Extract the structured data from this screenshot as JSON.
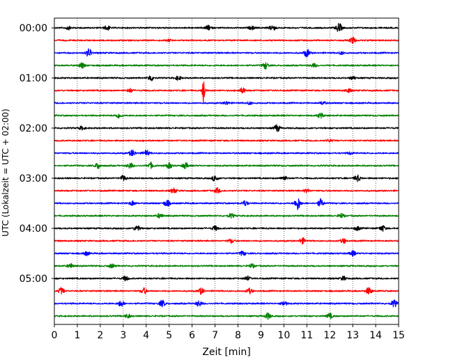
{
  "chart_data": {
    "type": "line",
    "title": "",
    "xlabel": "Zeit  [min]",
    "ylabel": "UTC (Lokalzeit = UTC + 02:00)",
    "xlim": [
      0,
      15
    ],
    "x_ticks": [
      "0",
      "1",
      "2",
      "3",
      "4",
      "5",
      "6",
      "7",
      "8",
      "9",
      "10",
      "11",
      "12",
      "13",
      "14",
      "15"
    ],
    "y_tick_labels": [
      "00:00",
      "01:00",
      "02:00",
      "03:00",
      "04:00",
      "05:00"
    ],
    "y_tick_rows": [
      0,
      4,
      8,
      12,
      16,
      20
    ],
    "grid": "vertical dotted at each minute",
    "trace_interval_minutes": 15,
    "trace_colors": [
      "#000000",
      "#ff0000",
      "#0000ff",
      "#008000"
    ],
    "series": [
      {
        "start": "00:00",
        "color": "#000000",
        "events": [
          {
            "t": 0.6,
            "a": 0.25
          },
          {
            "t": 2.3,
            "a": 0.35
          },
          {
            "t": 6.7,
            "a": 0.35
          },
          {
            "t": 8.6,
            "a": 0.25
          },
          {
            "t": 9.5,
            "a": 0.45
          },
          {
            "t": 12.4,
            "a": 0.7
          }
        ]
      },
      {
        "start": "00:15",
        "color": "#ff0000",
        "events": [
          {
            "t": 5.0,
            "a": 0.15
          },
          {
            "t": 13.0,
            "a": 0.5
          }
        ]
      },
      {
        "start": "00:30",
        "color": "#0000ff",
        "events": [
          {
            "t": 1.5,
            "a": 0.65
          },
          {
            "t": 11.0,
            "a": 0.6
          },
          {
            "t": 12.5,
            "a": 0.2
          }
        ]
      },
      {
        "start": "00:45",
        "color": "#008000",
        "events": [
          {
            "t": 1.2,
            "a": 0.45
          },
          {
            "t": 9.2,
            "a": 0.5
          },
          {
            "t": 11.3,
            "a": 0.3
          }
        ]
      },
      {
        "start": "01:00",
        "color": "#000000",
        "events": [
          {
            "t": 4.2,
            "a": 0.45
          },
          {
            "t": 5.4,
            "a": 0.3
          },
          {
            "t": 13.0,
            "a": 0.25
          }
        ]
      },
      {
        "start": "01:15",
        "color": "#ff0000",
        "events": [
          {
            "t": 3.3,
            "a": 0.3
          },
          {
            "t": 6.5,
            "a": 2.6
          },
          {
            "t": 8.2,
            "a": 0.4
          },
          {
            "t": 12.8,
            "a": 0.3
          }
        ]
      },
      {
        "start": "01:30",
        "color": "#0000ff",
        "events": [
          {
            "t": 7.5,
            "a": 0.25
          },
          {
            "t": 8.5,
            "a": 0.2
          },
          {
            "t": 11.7,
            "a": 0.25
          }
        ]
      },
      {
        "start": "01:45",
        "color": "#008000",
        "events": [
          {
            "t": 2.8,
            "a": 0.35
          },
          {
            "t": 11.6,
            "a": 0.4
          }
        ]
      },
      {
        "start": "02:00",
        "color": "#000000",
        "events": [
          {
            "t": 1.2,
            "a": 0.25
          },
          {
            "t": 9.7,
            "a": 0.55
          }
        ]
      },
      {
        "start": "02:15",
        "color": "#ff0000",
        "events": [
          {
            "t": 12.0,
            "a": 0.2
          }
        ]
      },
      {
        "start": "02:30",
        "color": "#0000ff",
        "events": [
          {
            "t": 3.4,
            "a": 0.5
          },
          {
            "t": 4.0,
            "a": 0.45
          },
          {
            "t": 12.9,
            "a": 0.2
          }
        ]
      },
      {
        "start": "02:45",
        "color": "#008000",
        "events": [
          {
            "t": 1.9,
            "a": 0.45
          },
          {
            "t": 3.3,
            "a": 0.45
          },
          {
            "t": 4.2,
            "a": 0.45
          },
          {
            "t": 5.0,
            "a": 0.4
          },
          {
            "t": 5.7,
            "a": 0.45
          }
        ]
      },
      {
        "start": "03:00",
        "color": "#000000",
        "events": [
          {
            "t": 3.0,
            "a": 0.4
          },
          {
            "t": 7.0,
            "a": 0.45
          },
          {
            "t": 10.0,
            "a": 0.35
          },
          {
            "t": 13.2,
            "a": 0.5
          }
        ]
      },
      {
        "start": "03:15",
        "color": "#ff0000",
        "events": [
          {
            "t": 5.2,
            "a": 0.35
          },
          {
            "t": 7.1,
            "a": 0.4
          },
          {
            "t": 11.0,
            "a": 0.25
          }
        ]
      },
      {
        "start": "03:30",
        "color": "#0000ff",
        "events": [
          {
            "t": 3.4,
            "a": 0.35
          },
          {
            "t": 4.9,
            "a": 0.5
          },
          {
            "t": 8.3,
            "a": 0.4
          },
          {
            "t": 10.6,
            "a": 1.0
          },
          {
            "t": 11.6,
            "a": 0.6
          }
        ]
      },
      {
        "start": "03:45",
        "color": "#008000",
        "events": [
          {
            "t": 4.6,
            "a": 0.35
          },
          {
            "t": 7.7,
            "a": 0.35
          },
          {
            "t": 12.5,
            "a": 0.35
          }
        ]
      },
      {
        "start": "04:00",
        "color": "#000000",
        "events": [
          {
            "t": 3.6,
            "a": 0.45
          },
          {
            "t": 7.0,
            "a": 0.35
          },
          {
            "t": 13.2,
            "a": 0.3
          },
          {
            "t": 14.3,
            "a": 0.45
          }
        ]
      },
      {
        "start": "04:15",
        "color": "#ff0000",
        "events": [
          {
            "t": 7.7,
            "a": 0.3
          },
          {
            "t": 10.8,
            "a": 0.45
          },
          {
            "t": 12.6,
            "a": 0.35
          }
        ]
      },
      {
        "start": "04:30",
        "color": "#0000ff",
        "events": [
          {
            "t": 1.4,
            "a": 0.3
          },
          {
            "t": 8.2,
            "a": 0.35
          },
          {
            "t": 13.0,
            "a": 0.4
          }
        ]
      },
      {
        "start": "04:45",
        "color": "#008000",
        "events": [
          {
            "t": 0.7,
            "a": 0.35
          },
          {
            "t": 2.5,
            "a": 0.3
          },
          {
            "t": 8.6,
            "a": 0.3
          }
        ]
      },
      {
        "start": "05:00",
        "color": "#000000",
        "events": [
          {
            "t": 3.1,
            "a": 0.35
          },
          {
            "t": 8.4,
            "a": 0.35
          },
          {
            "t": 12.6,
            "a": 0.3
          }
        ]
      },
      {
        "start": "05:15",
        "color": "#ff0000",
        "events": [
          {
            "t": 0.3,
            "a": 0.5
          },
          {
            "t": 3.9,
            "a": 0.45
          },
          {
            "t": 6.4,
            "a": 0.45
          },
          {
            "t": 8.5,
            "a": 0.4
          },
          {
            "t": 13.7,
            "a": 0.55
          }
        ]
      },
      {
        "start": "05:30",
        "color": "#0000ff",
        "events": [
          {
            "t": 2.9,
            "a": 0.45
          },
          {
            "t": 4.7,
            "a": 0.5
          },
          {
            "t": 6.3,
            "a": 0.45
          },
          {
            "t": 10.0,
            "a": 0.4
          },
          {
            "t": 14.8,
            "a": 0.55
          }
        ]
      },
      {
        "start": "05:45",
        "color": "#008000",
        "events": [
          {
            "t": 3.2,
            "a": 0.3
          },
          {
            "t": 9.3,
            "a": 0.5
          },
          {
            "t": 12.0,
            "a": 0.4
          }
        ]
      }
    ]
  }
}
